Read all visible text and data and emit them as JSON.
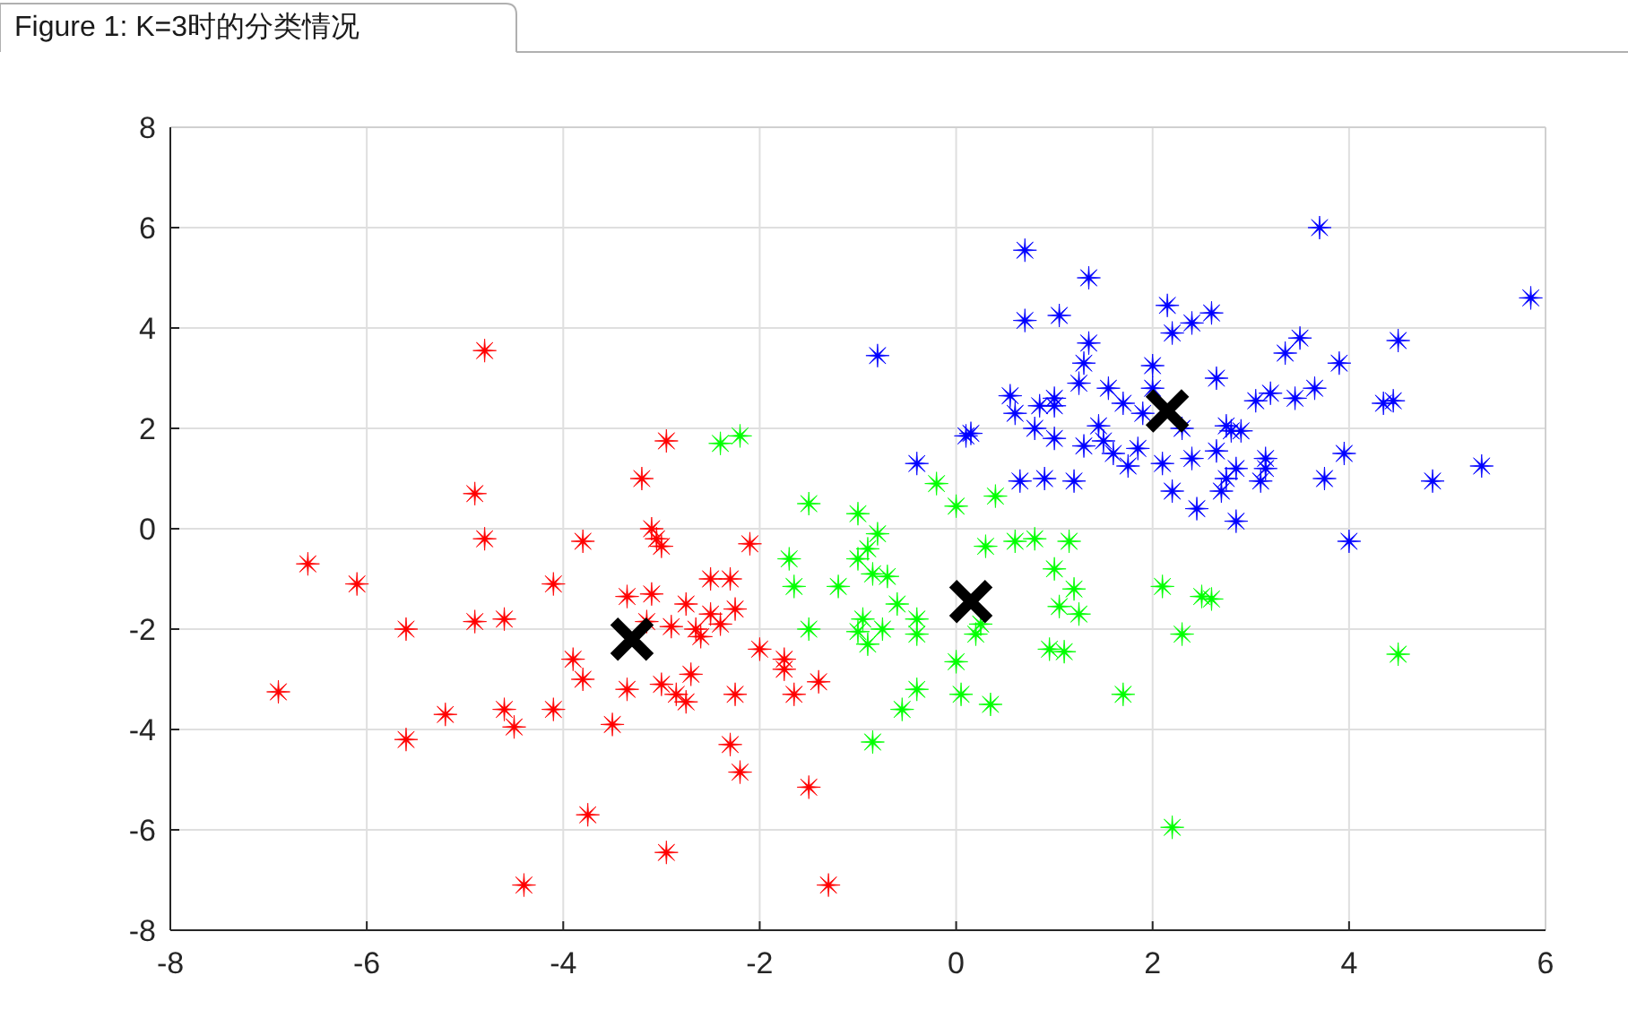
{
  "chart_data": {
    "type": "scatter",
    "title": "Figure 1: K=3时的分类情况",
    "xlim": [
      -8,
      6
    ],
    "ylim": [
      -8,
      8
    ],
    "xticks": [
      -8,
      -6,
      -4,
      -2,
      0,
      2,
      4,
      6
    ],
    "yticks": [
      -8,
      -6,
      -4,
      -2,
      0,
      2,
      4,
      6,
      8
    ],
    "grid": true,
    "series": [
      {
        "color": "#ff0000",
        "marker": "star",
        "x": [
          -6.9,
          -6.6,
          -6.1,
          -5.6,
          -5.6,
          -5.2,
          -4.9,
          -4.8,
          -4.8,
          -4.9,
          -4.6,
          -4.6,
          -4.5,
          -4.4,
          -4.1,
          -4.1,
          -3.8,
          -3.8,
          -3.9,
          -3.75,
          -3.5,
          -3.35,
          -3.35,
          -3.2,
          -3.1,
          -3.05,
          -3.0,
          -3.1,
          -3.0,
          -2.95,
          -2.9,
          -2.85,
          -2.75,
          -2.7,
          -2.75,
          -2.6,
          -2.65,
          -2.5,
          -2.5,
          -2.4,
          -2.3,
          -2.3,
          -2.25,
          -2.25,
          -2.2,
          -2.1,
          -2.0,
          -1.75,
          -1.75,
          -1.65,
          -1.5,
          -1.4,
          -1.3,
          -2.95,
          -3.15
        ],
        "values": [
          -3.25,
          -0.7,
          -1.1,
          -2.0,
          -4.2,
          -3.7,
          0.7,
          3.55,
          -0.2,
          -1.85,
          -1.8,
          -3.6,
          -3.95,
          -7.1,
          -1.1,
          -3.6,
          -0.25,
          -3.0,
          -2.6,
          -5.7,
          -3.9,
          -3.2,
          -1.35,
          1.0,
          0.0,
          -0.2,
          -0.35,
          -1.3,
          -3.1,
          1.75,
          -1.95,
          -3.3,
          -3.45,
          -2.9,
          -1.5,
          -2.15,
          -2.0,
          -1.0,
          -1.7,
          -1.9,
          -1.0,
          -4.3,
          -1.6,
          -3.3,
          -4.85,
          -0.3,
          -2.4,
          -2.6,
          -2.8,
          -3.3,
          -5.15,
          -3.05,
          -7.1,
          -6.45,
          -1.85
        ]
      },
      {
        "color": "#00ff00",
        "marker": "star",
        "x": [
          -2.4,
          -2.2,
          -1.7,
          -1.65,
          -1.5,
          -1.5,
          -1.2,
          -1.0,
          -1.0,
          -0.9,
          -0.85,
          -0.8,
          -0.7,
          -0.95,
          -0.9,
          -1.0,
          -0.75,
          -0.85,
          -0.55,
          -0.4,
          -0.4,
          -0.4,
          -0.2,
          0.0,
          0.0,
          0.05,
          0.2,
          0.25,
          0.3,
          0.4,
          0.35,
          0.6,
          0.8,
          1.0,
          1.05,
          1.2,
          1.1,
          1.15,
          1.25,
          1.7,
          2.1,
          2.3,
          2.2,
          2.5,
          2.6,
          4.5,
          0.95,
          -0.6
        ],
        "values": [
          1.7,
          1.85,
          -0.6,
          -1.15,
          0.5,
          -2.0,
          -1.15,
          -0.6,
          0.3,
          -0.4,
          -0.9,
          -0.1,
          -0.95,
          -1.8,
          -2.3,
          -2.05,
          -2.0,
          -4.25,
          -3.6,
          -3.2,
          -1.8,
          -2.1,
          0.9,
          0.45,
          -2.65,
          -3.3,
          -2.1,
          -1.9,
          -0.35,
          0.65,
          -3.5,
          -0.25,
          -0.2,
          -0.8,
          -1.55,
          -1.2,
          -2.45,
          -0.25,
          -1.7,
          -3.3,
          -1.15,
          -2.1,
          -5.95,
          -1.35,
          -1.4,
          -2.5,
          -2.4,
          -1.5
        ]
      },
      {
        "color": "#0000ff",
        "marker": "star",
        "x": [
          -0.8,
          -0.4,
          0.1,
          0.15,
          0.55,
          0.6,
          0.65,
          0.7,
          0.7,
          0.8,
          0.85,
          0.9,
          1.0,
          1.0,
          1.05,
          1.2,
          1.3,
          1.25,
          1.3,
          1.35,
          1.35,
          1.45,
          1.55,
          1.6,
          1.7,
          1.75,
          1.85,
          1.9,
          2.0,
          2.0,
          2.1,
          2.15,
          2.2,
          2.2,
          2.3,
          2.4,
          2.4,
          2.45,
          2.6,
          2.65,
          2.65,
          2.7,
          2.75,
          2.8,
          2.75,
          2.85,
          2.85,
          2.9,
          3.05,
          3.15,
          3.15,
          3.1,
          3.2,
          3.35,
          3.5,
          3.45,
          3.65,
          3.7,
          3.75,
          3.9,
          3.95,
          4.0,
          4.35,
          4.45,
          4.5,
          4.85,
          5.35,
          5.85,
          1.0,
          1.5
        ],
        "values": [
          3.45,
          1.3,
          1.85,
          1.9,
          2.65,
          2.3,
          0.95,
          4.15,
          5.55,
          2.0,
          2.45,
          1.0,
          1.8,
          2.6,
          4.25,
          0.95,
          1.65,
          2.9,
          3.3,
          3.7,
          5.0,
          2.05,
          2.8,
          1.5,
          2.5,
          1.25,
          1.6,
          2.3,
          3.25,
          2.8,
          1.3,
          4.45,
          3.9,
          0.75,
          2.0,
          4.1,
          1.4,
          0.4,
          4.3,
          1.55,
          3.0,
          0.75,
          1.0,
          1.95,
          2.05,
          1.2,
          0.15,
          1.95,
          2.55,
          1.2,
          1.4,
          0.95,
          2.7,
          3.5,
          3.8,
          2.6,
          2.8,
          6.0,
          1.0,
          3.3,
          1.5,
          -0.25,
          2.5,
          2.55,
          3.75,
          0.95,
          1.25,
          4.6,
          2.45,
          1.75
        ]
      },
      {
        "color": "#000000",
        "marker": "cross",
        "x": [
          -3.3,
          0.15,
          2.15
        ],
        "values": [
          -2.2,
          -1.45,
          2.35
        ]
      }
    ]
  }
}
